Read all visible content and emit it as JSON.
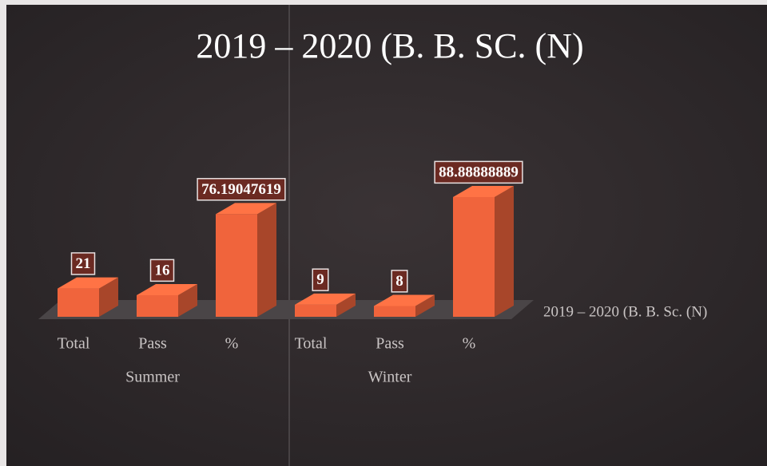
{
  "chart_data": {
    "type": "bar3d",
    "title": "2019 – 2020 (B. B. SC. (N)",
    "categories": [
      "Total",
      "Pass",
      "%",
      "Total",
      "Pass",
      "%"
    ],
    "groups": [
      "Summer",
      "Winter"
    ],
    "series": [
      {
        "name": "2019 – 2020 (B. B. Sc. (N)",
        "color": "#f0643c",
        "values": [
          21,
          16,
          76.19047619,
          9,
          8,
          88.88888889
        ]
      }
    ]
  }
}
